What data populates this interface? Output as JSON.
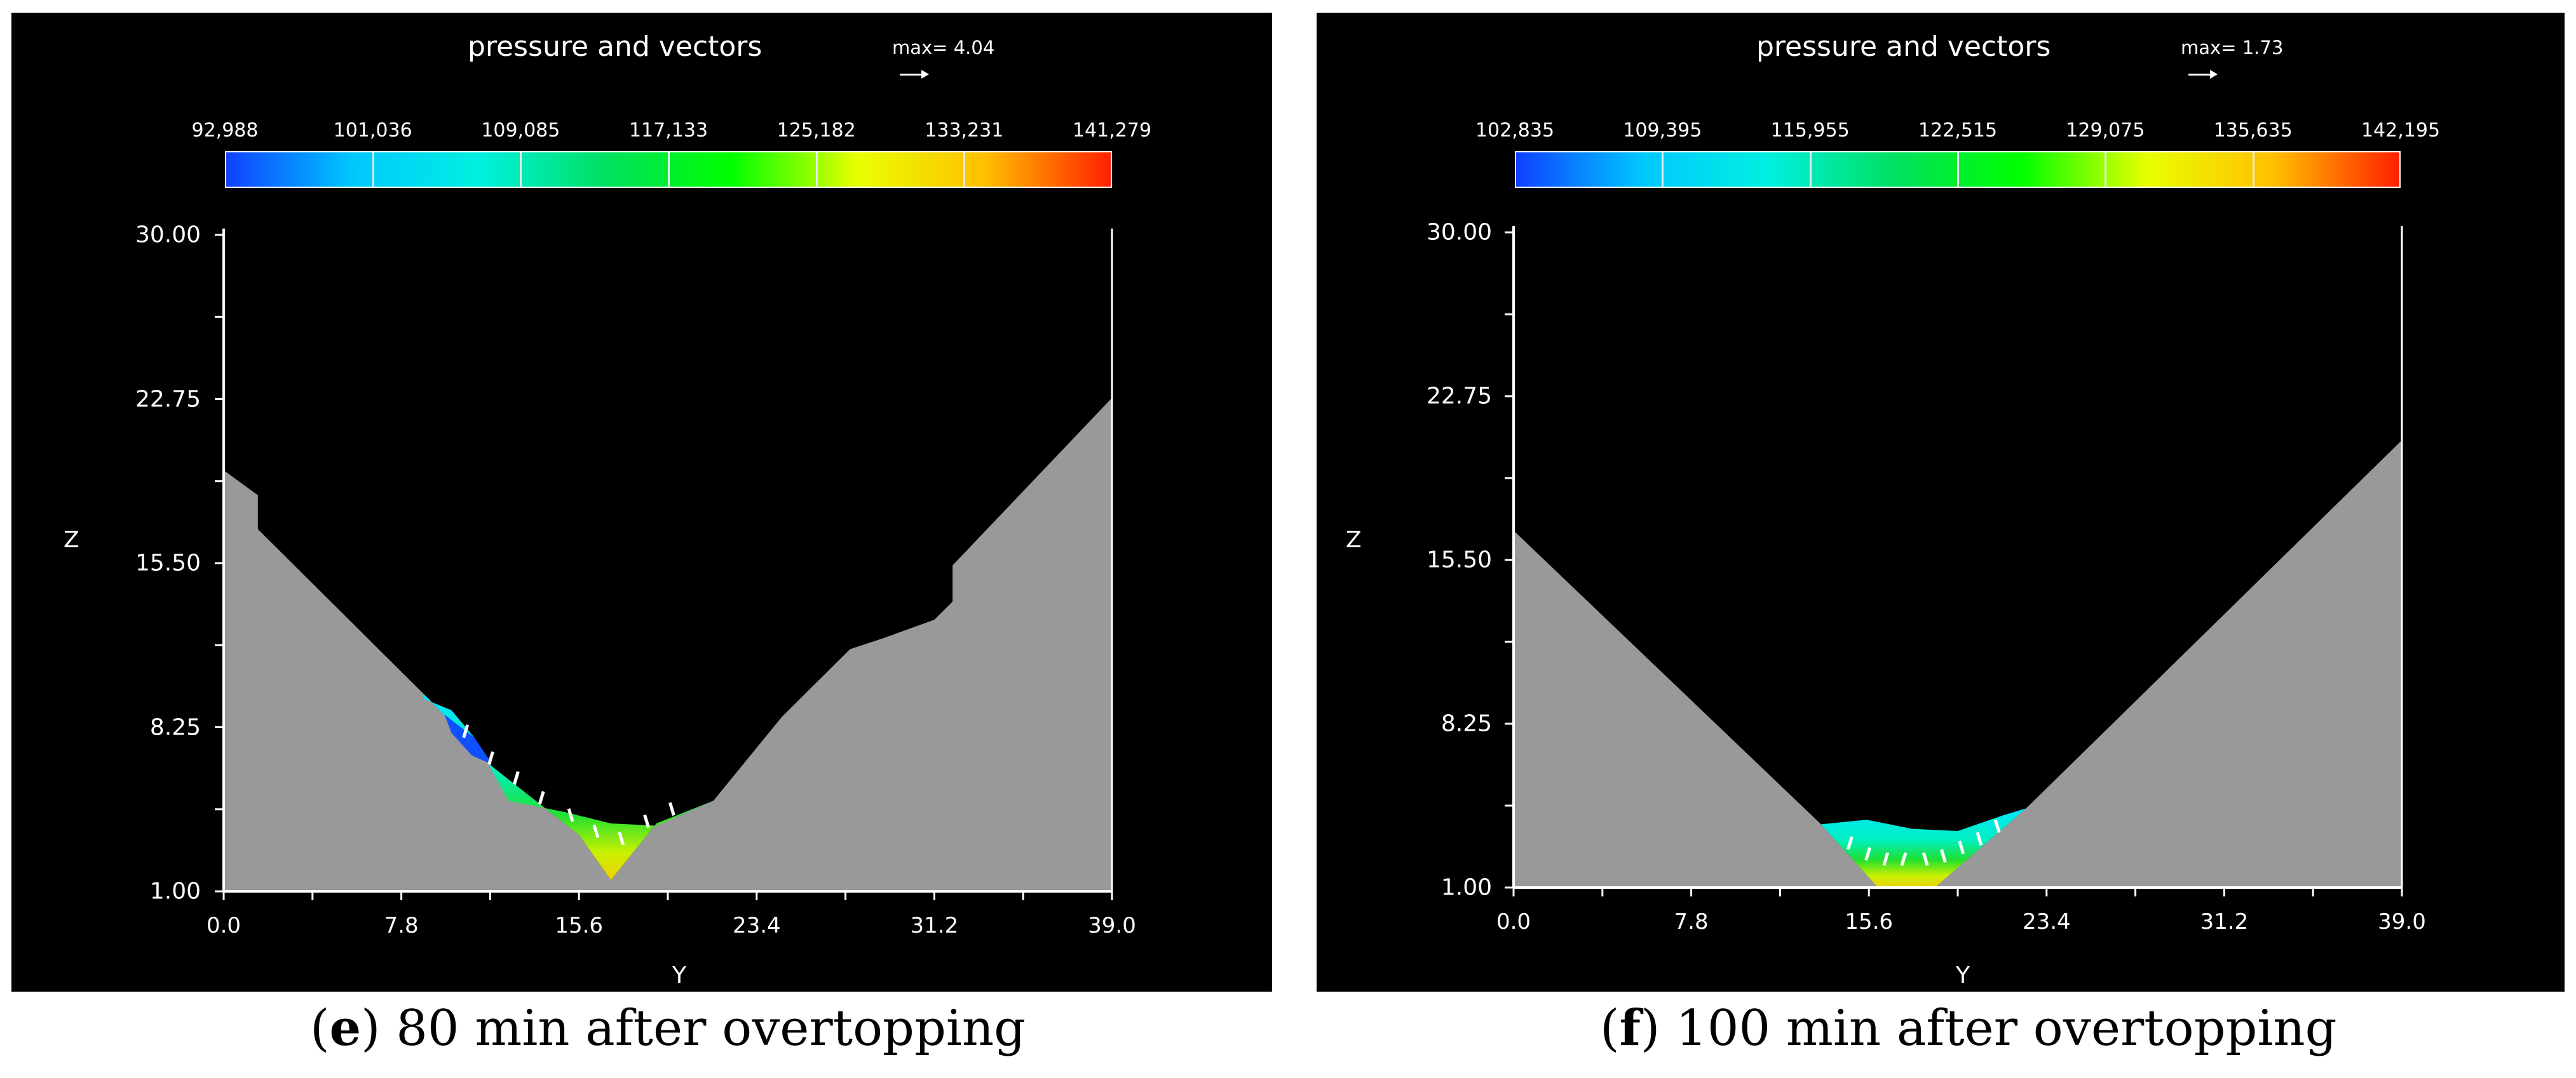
{
  "chart_data": [
    {
      "type": "contour",
      "panel_id": "e",
      "title": "pressure and vectors",
      "max_vector_label": "max= 4.04",
      "colorbar": {
        "ticks": [
          "92,988",
          "101,036",
          "109,085",
          "117,133",
          "125,182",
          "133,231",
          "141,279"
        ],
        "min": 92988,
        "max": 141279,
        "colors": [
          "#1040ff",
          "#00c8ff",
          "#00f0e0",
          "#00e060",
          "#00ff00",
          "#e8ff00",
          "#ffc000",
          "#ff2000"
        ]
      },
      "xlabel": "Y",
      "ylabel": "Z",
      "x_ticks": [
        "0.0",
        "7.8",
        "15.6",
        "23.4",
        "31.2",
        "39.0"
      ],
      "y_ticks": [
        "30.00",
        "22.75",
        "15.50",
        "8.25",
        "1.00"
      ],
      "xlim": [
        0.0,
        39.0
      ],
      "ylim": [
        1.0,
        30.0
      ],
      "terrain_profile": [
        [
          0.0,
          19.6
        ],
        [
          1.5,
          18.5
        ],
        [
          1.5,
          17.0
        ],
        [
          9.0,
          9.5
        ],
        [
          11.8,
          6.5
        ],
        [
          15.6,
          3.5
        ],
        [
          17.0,
          1.5
        ],
        [
          19.0,
          4.0
        ],
        [
          21.5,
          5.0
        ],
        [
          24.5,
          8.7
        ],
        [
          27.5,
          11.7
        ],
        [
          29.0,
          12.2
        ],
        [
          31.2,
          13.0
        ],
        [
          32.0,
          13.8
        ],
        [
          32.0,
          15.4
        ],
        [
          39.0,
          22.8
        ]
      ],
      "water_surface": [
        [
          8.8,
          9.5
        ],
        [
          10.0,
          9.0
        ],
        [
          11.0,
          7.8
        ],
        [
          12.5,
          5.0
        ],
        [
          15.0,
          4.5
        ],
        [
          17.0,
          4.0
        ],
        [
          19.0,
          3.9
        ],
        [
          21.5,
          5.0
        ]
      ],
      "caption_letter": "e",
      "caption_text": " 80 min after overtopping"
    },
    {
      "type": "contour",
      "panel_id": "f",
      "title": "pressure and vectors",
      "max_vector_label": "max= 1.73",
      "colorbar": {
        "ticks": [
          "102,835",
          "109,395",
          "115,955",
          "122,515",
          "129,075",
          "135,635",
          "142,195"
        ],
        "min": 102835,
        "max": 142195,
        "colors": [
          "#1040ff",
          "#00c8ff",
          "#00f0e0",
          "#00e060",
          "#00ff00",
          "#e8ff00",
          "#ffc000",
          "#ff2000"
        ]
      },
      "xlabel": "Y",
      "ylabel": "Z",
      "x_ticks": [
        "0.0",
        "7.8",
        "15.6",
        "23.4",
        "31.2",
        "39.0"
      ],
      "y_ticks": [
        "30.00",
        "22.75",
        "15.50",
        "8.25",
        "1.00"
      ],
      "xlim": [
        0.0,
        39.0
      ],
      "ylim": [
        1.0,
        30.0
      ],
      "terrain_profile": [
        [
          0.0,
          16.8
        ],
        [
          13.5,
          3.8
        ],
        [
          16.0,
          1.0
        ],
        [
          18.5,
          1.0
        ],
        [
          22.5,
          4.5
        ],
        [
          39.0,
          20.8
        ]
      ],
      "water_surface": [
        [
          13.5,
          3.8
        ],
        [
          15.5,
          4.0
        ],
        [
          17.5,
          3.6
        ],
        [
          19.5,
          3.5
        ],
        [
          21.5,
          4.2
        ],
        [
          22.5,
          4.5
        ]
      ],
      "caption_letter": "f",
      "caption_text": " 100 min after overtopping"
    }
  ]
}
